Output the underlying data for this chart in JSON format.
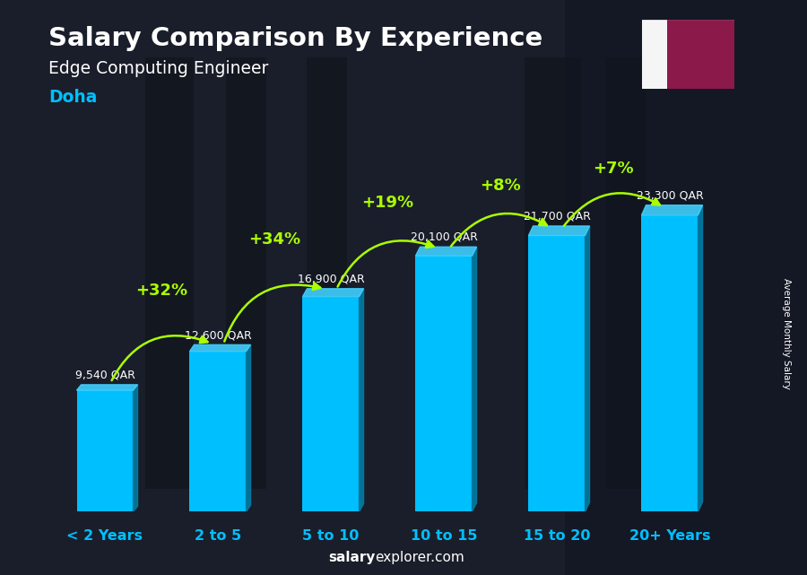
{
  "title": "Salary Comparison By Experience",
  "subtitle": "Edge Computing Engineer",
  "city": "Doha",
  "categories": [
    "< 2 Years",
    "2 to 5",
    "5 to 10",
    "10 to 15",
    "15 to 20",
    "20+ Years"
  ],
  "values": [
    9540,
    12600,
    16900,
    20100,
    21700,
    23300
  ],
  "salary_labels": [
    "9,540 QAR",
    "12,600 QAR",
    "16,900 QAR",
    "20,100 QAR",
    "21,700 QAR",
    "23,300 QAR"
  ],
  "pct_labels": [
    "+32%",
    "+34%",
    "+19%",
    "+8%",
    "+7%"
  ],
  "bar_face_color": "#00BFFF",
  "bar_right_color": "#0080AA",
  "bar_top_color": "#40D0FF",
  "background_dark": "#1a1e2a",
  "title_color": "#ffffff",
  "subtitle_color": "#ffffff",
  "city_color": "#00BFFF",
  "salary_label_color": "#ffffff",
  "pct_color": "#AAFF00",
  "arrow_color": "#AAFF00",
  "xtick_color": "#00BFFF",
  "side_label": "Average Monthly Salary",
  "footer_text": "salaryexplorer.com",
  "flag_white": "#f5f5f5",
  "flag_maroon": "#8B1A4A",
  "ylim_max": 28000,
  "bar_width": 0.5,
  "figsize": [
    9.0,
    6.41
  ],
  "dpi": 100
}
